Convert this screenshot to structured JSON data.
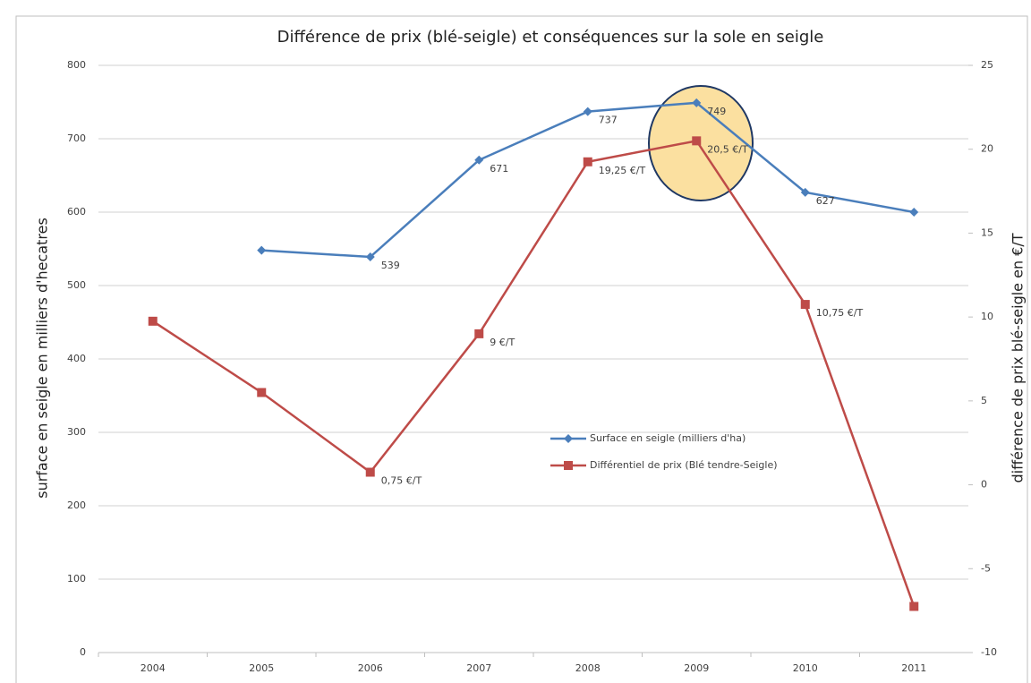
{
  "chart_data": {
    "type": "line",
    "title": "Différence de prix (blé-seigle) et conséquences sur la sole en seigle",
    "ylabel": "surface en seigle en milliers d'hecatres",
    "y2label": "différence de prix blé-seigle en €/T",
    "categories": [
      "2004",
      "2005",
      "2006",
      "2007",
      "2008",
      "2009",
      "2010",
      "2011"
    ],
    "ylim": [
      0,
      800
    ],
    "yticks": [
      0,
      100,
      200,
      300,
      400,
      500,
      600,
      700,
      800
    ],
    "y2lim": [
      -10,
      25
    ],
    "y2ticks": [
      -10,
      -5,
      0,
      5,
      10,
      15,
      20,
      25
    ],
    "grid": true,
    "legend": "center",
    "series": [
      {
        "name": "Surface en seigle (milliers d'ha)",
        "color": "#4a7ebb",
        "marker": "diamond",
        "values": [
          null,
          548,
          539,
          671,
          737,
          749,
          627,
          600
        ],
        "value_labels": [
          null,
          null,
          "539",
          "671",
          "737",
          "749",
          "627",
          null
        ]
      },
      {
        "name": "Différentiel de prix (Blé tendre-Seigle)",
        "color": "#be4b48",
        "marker": "square",
        "axis": "y2",
        "values": [
          9.75,
          5.5,
          0.75,
          9,
          19.25,
          20.5,
          10.75,
          -7.25
        ],
        "value_labels": [
          null,
          null,
          "0,75 €/T",
          "9 €/T",
          "19,25 €/T",
          "20,5 €/T",
          "10,75 €/T",
          null
        ]
      }
    ]
  }
}
